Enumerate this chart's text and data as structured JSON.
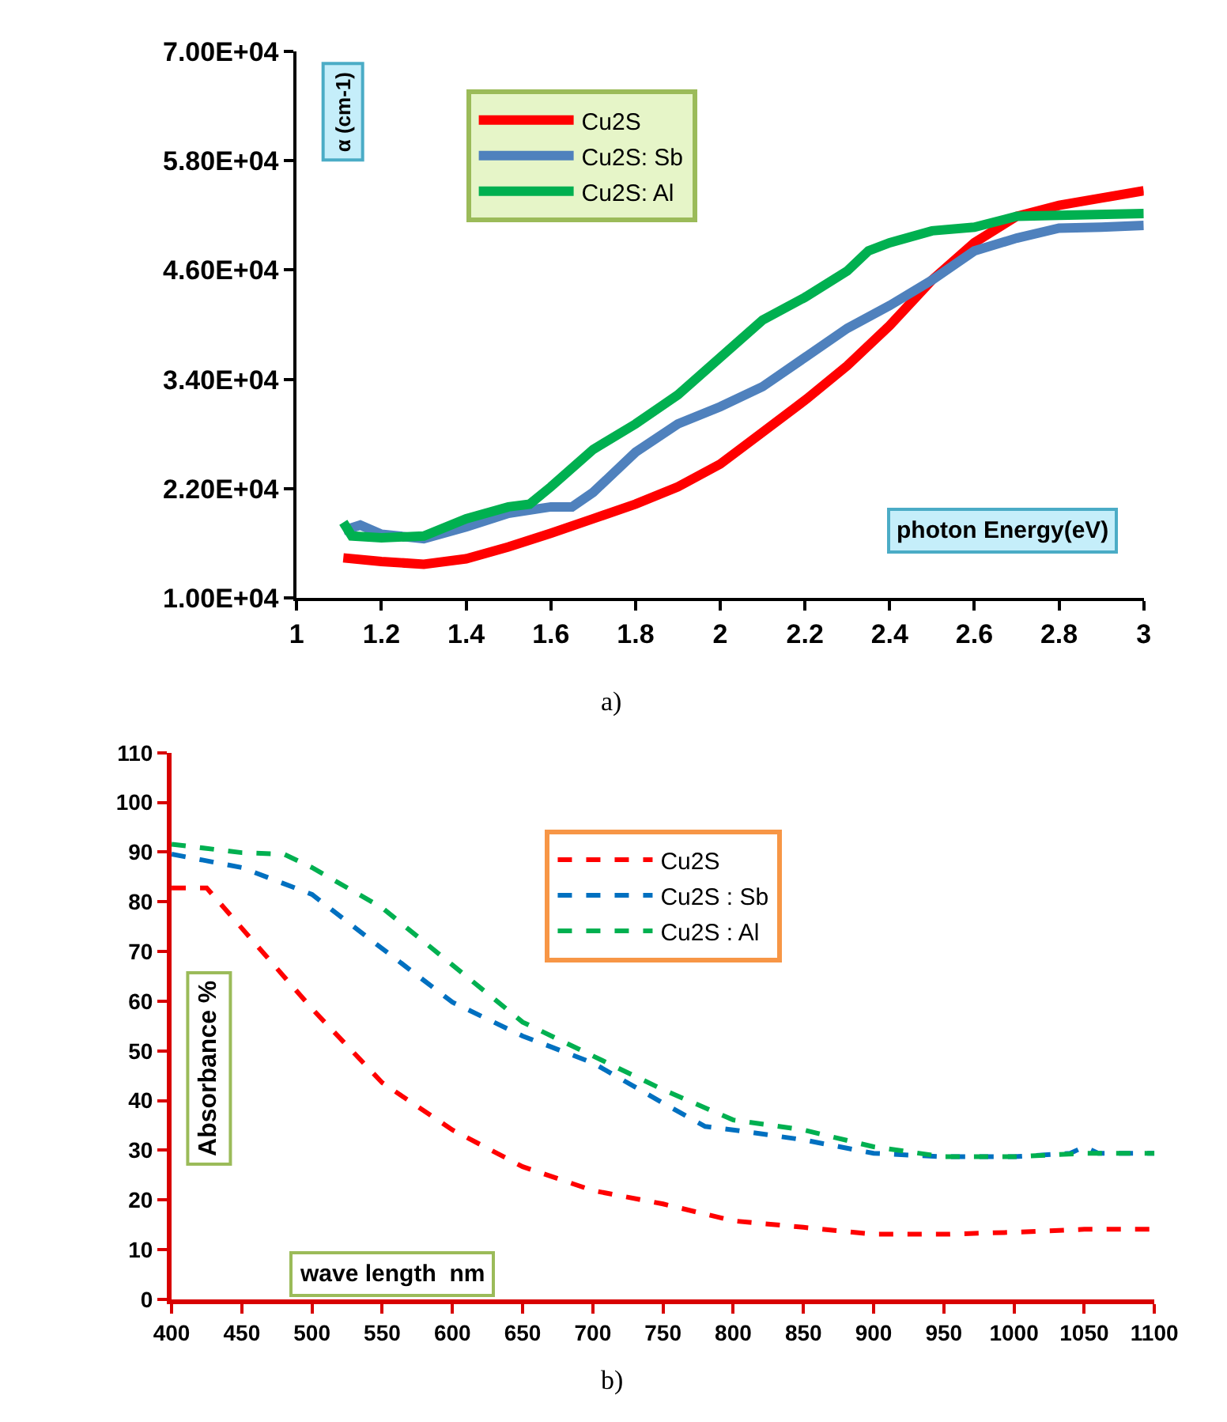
{
  "chart_data": [
    {
      "type": "line",
      "xlabel": "photon Energy(eV)",
      "ylabel": "α (cm-1)",
      "annotations": [
        "a)"
      ],
      "xlim": [
        1,
        3
      ],
      "ylim": [
        10000,
        70000
      ],
      "xticks": [
        1,
        1.2,
        1.4,
        1.6,
        1.8,
        2,
        2.2,
        2.4,
        2.6,
        2.8,
        3
      ],
      "yticks": [
        {
          "value": 10000,
          "label": "1.00E+04"
        },
        {
          "value": 22000,
          "label": "2.20E+04"
        },
        {
          "value": 34000,
          "label": "3.40E+04"
        },
        {
          "value": 46000,
          "label": "4.60E+04"
        },
        {
          "value": 58000,
          "label": "5.80E+04"
        },
        {
          "value": 70000,
          "label": "7.00E+04"
        }
      ],
      "legend": "top",
      "line_style": "solid",
      "series": [
        {
          "name": "Cu2S",
          "color": "#ff0000",
          "x": [
            1.11,
            1.2,
            1.3,
            1.4,
            1.5,
            1.6,
            1.7,
            1.8,
            1.9,
            2.0,
            2.1,
            2.2,
            2.3,
            2.4,
            2.5,
            2.6,
            2.7,
            2.8,
            2.9,
            3.0
          ],
          "values": [
            14400,
            14000,
            13700,
            14300,
            15600,
            17100,
            18700,
            20300,
            22200,
            24700,
            28200,
            31700,
            35500,
            39900,
            44900,
            49000,
            51900,
            53100,
            53900,
            54700
          ]
        },
        {
          "name": "Cu2S: Sb",
          "color": "#4f81bd",
          "x": [
            1.11,
            1.15,
            1.2,
            1.3,
            1.4,
            1.5,
            1.6,
            1.65,
            1.7,
            1.8,
            1.9,
            2.0,
            2.1,
            2.2,
            2.3,
            2.4,
            2.5,
            2.6,
            2.7,
            2.8,
            2.9,
            3.0
          ],
          "values": [
            17400,
            18000,
            17000,
            16500,
            17800,
            19300,
            20000,
            20000,
            21600,
            26000,
            29100,
            31000,
            33200,
            36400,
            39600,
            42100,
            44900,
            48100,
            49500,
            50600,
            50700,
            50900
          ]
        },
        {
          "name": "Cu2S: Al",
          "color": "#00b050",
          "x": [
            1.11,
            1.13,
            1.2,
            1.3,
            1.4,
            1.5,
            1.55,
            1.6,
            1.7,
            1.8,
            1.9,
            2.0,
            2.1,
            2.2,
            2.3,
            2.35,
            2.4,
            2.5,
            2.6,
            2.7,
            2.8,
            3.0
          ],
          "values": [
            18300,
            16800,
            16600,
            16800,
            18700,
            20000,
            20300,
            22200,
            26300,
            29100,
            32300,
            36400,
            40500,
            43000,
            45900,
            48100,
            49000,
            50300,
            50700,
            51900,
            52000,
            52200
          ]
        }
      ]
    },
    {
      "type": "line",
      "xlabel": "wave length  nm",
      "ylabel": "Absorbance %",
      "annotations": [
        "b)"
      ],
      "xlim": [
        400,
        1100
      ],
      "ylim": [
        0,
        110
      ],
      "xticks": [
        400,
        450,
        500,
        550,
        600,
        650,
        700,
        750,
        800,
        850,
        900,
        950,
        1000,
        1050,
        1100
      ],
      "yticks": [
        0,
        10,
        20,
        30,
        40,
        50,
        60,
        70,
        80,
        90,
        100,
        110
      ],
      "legend": "top",
      "line_style": "dashed",
      "series": [
        {
          "name": "Cu2S",
          "color": "#ff0000",
          "x": [
            400,
            425,
            450,
            500,
            550,
            600,
            650,
            700,
            750,
            800,
            850,
            900,
            950,
            1000,
            1050,
            1100
          ],
          "values": [
            82.8,
            82.8,
            74.7,
            58.5,
            43.6,
            34.1,
            26.7,
            21.9,
            19.2,
            15.8,
            14.5,
            13.1,
            13.1,
            13.5,
            14.1,
            14.1
          ]
        },
        {
          "name": "Cu2S : Sb",
          "color": "#0070c0",
          "x": [
            400,
            450,
            500,
            550,
            600,
            650,
            700,
            750,
            780,
            800,
            850,
            900,
            950,
            1000,
            1040,
            1050,
            1060,
            1100
          ],
          "values": [
            89.6,
            86.9,
            81.5,
            70.6,
            59.8,
            53.0,
            47.6,
            39.5,
            34.8,
            34.1,
            32.1,
            29.4,
            28.7,
            28.7,
            29.4,
            30.7,
            29.4,
            29.4
          ]
        },
        {
          "name": "Cu2S : Al",
          "color": "#00b050",
          "x": [
            400,
            450,
            480,
            500,
            550,
            600,
            650,
            700,
            750,
            800,
            850,
            900,
            950,
            1000,
            1050,
            1100
          ],
          "values": [
            91.6,
            89.9,
            89.6,
            86.9,
            78.8,
            67.3,
            55.8,
            49.0,
            42.2,
            36.1,
            34.1,
            30.7,
            28.7,
            28.7,
            29.4,
            29.4
          ]
        }
      ]
    }
  ]
}
